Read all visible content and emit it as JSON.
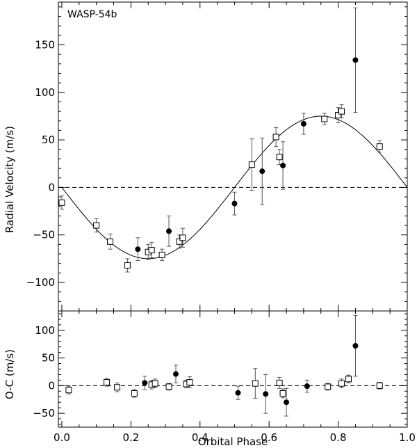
{
  "chart_data": [
    {
      "type": "scatter",
      "panel": "top",
      "title": "WASP-54b",
      "xlabel": "",
      "ylabel": "Radial Velocity (m/s)",
      "xlim": [
        -0.01,
        1.0
      ],
      "ylim": [
        -130,
        195
      ],
      "yticks": [
        -100,
        -50,
        0,
        50,
        100,
        150
      ],
      "zero_line": "dashed",
      "model_curve": {
        "name": "Orbit fit",
        "amplitude": 75,
        "form": "-K sin(2*pi*phase)"
      },
      "series": [
        {
          "name": "Open squares",
          "marker": "open-square",
          "points": [
            {
              "x": 0.0,
              "y": -16,
              "err": 7
            },
            {
              "x": 0.1,
              "y": -40,
              "err": 7
            },
            {
              "x": 0.14,
              "y": -57,
              "err": 8
            },
            {
              "x": 0.19,
              "y": -82,
              "err": 7
            },
            {
              "x": 0.25,
              "y": -68,
              "err": 8
            },
            {
              "x": 0.26,
              "y": -66,
              "err": 8
            },
            {
              "x": 0.29,
              "y": -71,
              "err": 6
            },
            {
              "x": 0.34,
              "y": -57,
              "err": 7
            },
            {
              "x": 0.35,
              "y": -53,
              "err": 10
            },
            {
              "x": 0.55,
              "y": 24,
              "err": 27
            },
            {
              "x": 0.62,
              "y": 53,
              "err": 10
            },
            {
              "x": 0.63,
              "y": 32,
              "err": 8
            },
            {
              "x": 0.76,
              "y": 72,
              "err": 6
            },
            {
              "x": 0.8,
              "y": 76,
              "err": 8
            },
            {
              "x": 0.81,
              "y": 80,
              "err": 7
            },
            {
              "x": 0.92,
              "y": 43,
              "err": 6
            }
          ]
        },
        {
          "name": "Filled circles",
          "marker": "filled-circle",
          "points": [
            {
              "x": 0.22,
              "y": -65,
              "err": 12
            },
            {
              "x": 0.31,
              "y": -46,
              "err": 16
            },
            {
              "x": 0.5,
              "y": -17,
              "err": 12
            },
            {
              "x": 0.58,
              "y": 17,
              "err": 35
            },
            {
              "x": 0.64,
              "y": 23,
              "err": 25
            },
            {
              "x": 0.7,
              "y": 67,
              "err": 11
            },
            {
              "x": 0.85,
              "y": 134,
              "err": 55
            }
          ]
        }
      ]
    },
    {
      "type": "scatter",
      "panel": "bottom",
      "xlabel": "Orbital Phase",
      "ylabel": "O-C (m/s)",
      "xlim": [
        -0.01,
        1.0
      ],
      "ylim": [
        -75,
        135
      ],
      "xticks": [
        0.0,
        0.2,
        0.4,
        0.6,
        0.8,
        1.0
      ],
      "yticks": [
        -50,
        0,
        50,
        100
      ],
      "zero_line": "dashed",
      "series": [
        {
          "name": "Open squares",
          "marker": "open-square",
          "points": [
            {
              "x": 0.02,
              "y": -8,
              "err": 7
            },
            {
              "x": 0.13,
              "y": 6,
              "err": 7
            },
            {
              "x": 0.16,
              "y": -3,
              "err": 8
            },
            {
              "x": 0.21,
              "y": -14,
              "err": 7
            },
            {
              "x": 0.26,
              "y": 2,
              "err": 8
            },
            {
              "x": 0.27,
              "y": 4,
              "err": 8
            },
            {
              "x": 0.31,
              "y": -2,
              "err": 6
            },
            {
              "x": 0.36,
              "y": 3,
              "err": 7
            },
            {
              "x": 0.37,
              "y": 6,
              "err": 10
            },
            {
              "x": 0.56,
              "y": 4,
              "err": 27
            },
            {
              "x": 0.63,
              "y": 5,
              "err": 10
            },
            {
              "x": 0.64,
              "y": -14,
              "err": 8
            },
            {
              "x": 0.77,
              "y": -2,
              "err": 6
            },
            {
              "x": 0.81,
              "y": 4,
              "err": 8
            },
            {
              "x": 0.83,
              "y": 12,
              "err": 7
            },
            {
              "x": 0.92,
              "y": 0,
              "err": 6
            }
          ]
        },
        {
          "name": "Filled circles",
          "marker": "filled-circle",
          "points": [
            {
              "x": 0.24,
              "y": 5,
              "err": 12
            },
            {
              "x": 0.33,
              "y": 21,
              "err": 16
            },
            {
              "x": 0.51,
              "y": -13,
              "err": 12
            },
            {
              "x": 0.59,
              "y": -15,
              "err": 35
            },
            {
              "x": 0.65,
              "y": -30,
              "err": 25
            },
            {
              "x": 0.71,
              "y": -1,
              "err": 11
            },
            {
              "x": 0.85,
              "y": 72,
              "err": 55
            }
          ]
        }
      ]
    }
  ]
}
